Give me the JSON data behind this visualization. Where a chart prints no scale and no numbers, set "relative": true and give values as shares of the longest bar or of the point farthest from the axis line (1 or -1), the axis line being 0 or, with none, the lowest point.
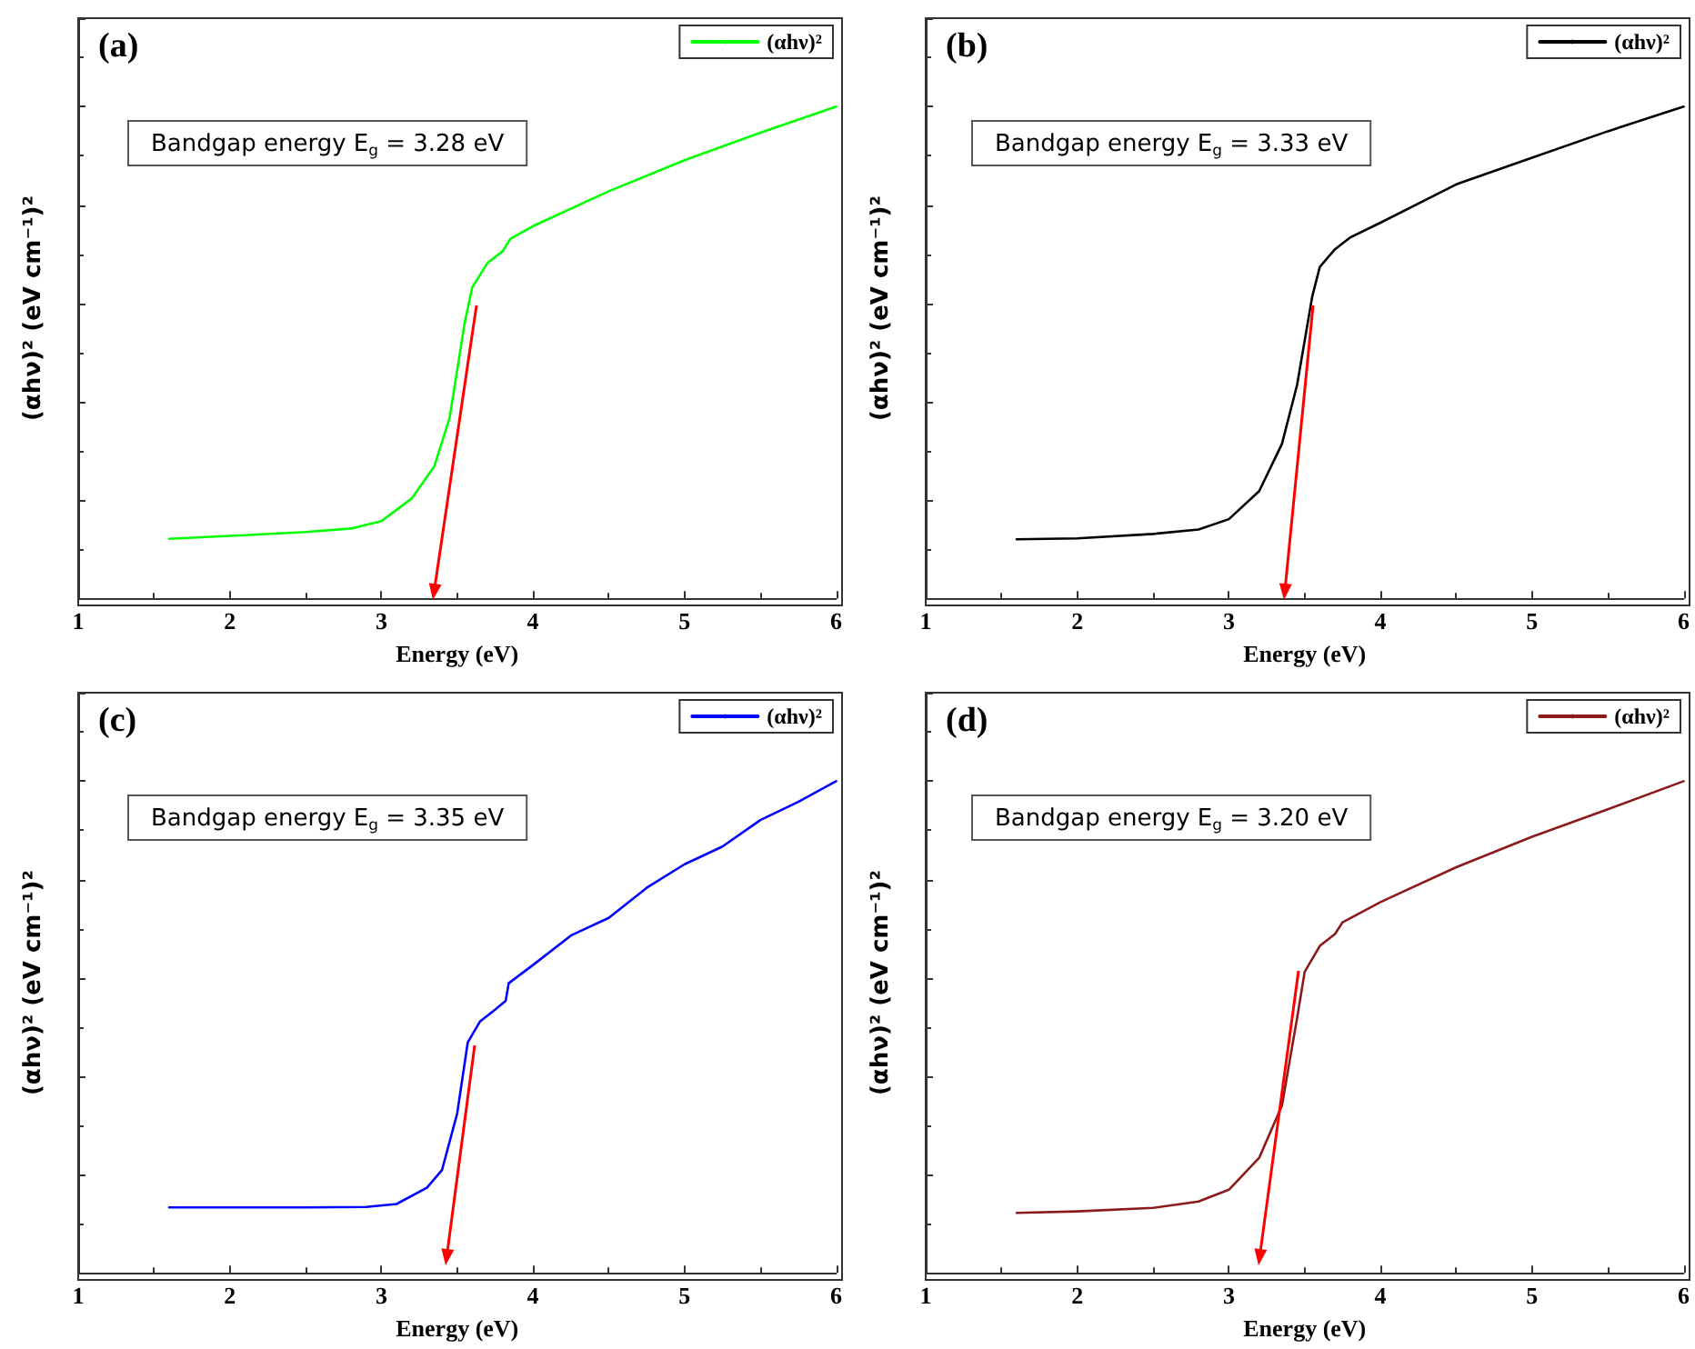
{
  "chart_data": [
    {
      "type": "line",
      "title": "(a)",
      "xlabel": "Energy (eV)",
      "ylabel": "(αhν)² (eV cm⁻¹)²",
      "relative": true,
      "xlim": [
        1,
        6
      ],
      "xticks": [
        1,
        2,
        3,
        4,
        5,
        6
      ],
      "tick_labels": "x",
      "legend": "top right",
      "grid": false,
      "annotations": [
        "Bandgap energy E$_{g}$ = 3.28 eV"
      ],
      "series": [
        {
          "name": "(αhν)²",
          "color": "#00ff00",
          "x": [
            1.6,
            2.0,
            2.5,
            2.8,
            3.0,
            3.2,
            3.35,
            3.45,
            3.55,
            3.6,
            3.7,
            3.8,
            3.85,
            4.0,
            4.5,
            5.0,
            5.5,
            6.0
          ],
          "values": [
            0.121,
            0.127,
            0.135,
            0.142,
            0.157,
            0.203,
            0.269,
            0.367,
            0.561,
            0.633,
            0.682,
            0.706,
            0.731,
            0.757,
            0.828,
            0.891,
            0.947,
            1
          ]
        }
      ]
    },
    {
      "type": "line",
      "title": "(b)",
      "xlabel": "Energy (eV)",
      "ylabel": "(αhν)² (eV cm⁻¹)²",
      "relative": true,
      "xlim": [
        1,
        6
      ],
      "xticks": [
        1,
        2,
        3,
        4,
        5,
        6
      ],
      "tick_labels": "x",
      "legend": "top right",
      "grid": false,
      "annotations": [
        "Bandgap energy E$_{g}$ = 3.33 eV"
      ],
      "series": [
        {
          "name": "(αhν)²",
          "color": "#000000",
          "x": [
            1.6,
            2.0,
            2.5,
            2.8,
            3.0,
            3.2,
            3.35,
            3.45,
            3.55,
            3.6,
            3.7,
            3.8,
            4.0,
            4.5,
            5.0,
            5.5,
            6.0
          ],
          "values": [
            0.12,
            0.122,
            0.131,
            0.14,
            0.161,
            0.218,
            0.314,
            0.434,
            0.614,
            0.674,
            0.71,
            0.734,
            0.764,
            0.842,
            0.896,
            0.95,
            1
          ]
        }
      ]
    },
    {
      "type": "line",
      "title": "(c)",
      "xlabel": "Energy (eV)",
      "ylabel": "(αhν)² (eV cm⁻¹)²",
      "relative": true,
      "xlim": [
        1,
        6
      ],
      "xticks": [
        1,
        2,
        3,
        4,
        5,
        6
      ],
      "tick_labels": "x",
      "legend": "top right",
      "grid": false,
      "annotations": [
        "Bandgap energy E$_{g}$ = 3.35 eV"
      ],
      "series": [
        {
          "name": "(αhν)²",
          "color": "#0000ff",
          "x": [
            1.6,
            2.5,
            2.9,
            3.1,
            3.3,
            3.4,
            3.5,
            3.57,
            3.65,
            3.75,
            3.82,
            3.84,
            4.0,
            4.25,
            4.5,
            4.75,
            5.0,
            5.25,
            5.5,
            5.75,
            6.0
          ],
          "values": [
            0.133,
            0.133,
            0.134,
            0.14,
            0.173,
            0.209,
            0.324,
            0.469,
            0.511,
            0.535,
            0.553,
            0.589,
            0.626,
            0.686,
            0.722,
            0.783,
            0.831,
            0.867,
            0.921,
            0.958,
            1
          ]
        }
      ]
    },
    {
      "type": "line",
      "title": "(d)",
      "xlabel": "Energy (eV)",
      "ylabel": "(αhν)² (eV cm⁻¹)²",
      "relative": true,
      "xlim": [
        1,
        6
      ],
      "xticks": [
        1,
        2,
        3,
        4,
        5,
        6
      ],
      "tick_labels": "x",
      "legend": "top right",
      "grid": false,
      "annotations": [
        "Bandgap energy E$_{g}$ = 3.20 eV"
      ],
      "series": [
        {
          "name": "(αhν)²",
          "color": "#8b1a1a",
          "x": [
            1.6,
            2.0,
            2.5,
            2.8,
            3.0,
            3.2,
            3.35,
            3.45,
            3.5,
            3.6,
            3.7,
            3.75,
            4.0,
            4.5,
            5.0,
            5.5,
            6.0
          ],
          "values": [
            0.122,
            0.125,
            0.132,
            0.145,
            0.169,
            0.234,
            0.34,
            0.518,
            0.612,
            0.665,
            0.689,
            0.713,
            0.754,
            0.825,
            0.887,
            0.943,
            1
          ]
        }
      ]
    }
  ]
}
